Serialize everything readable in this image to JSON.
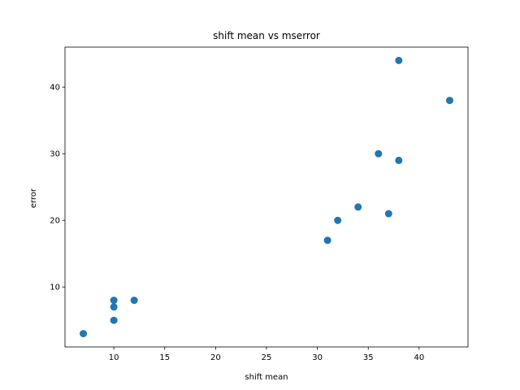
{
  "chart_data": {
    "type": "scatter",
    "title": "shift mean vs mserror",
    "xlabel": "shift mean",
    "ylabel": "error",
    "xlim": [
      5.2,
      44.8
    ],
    "ylim": [
      1.0,
      46.0
    ],
    "xticks": [
      10,
      15,
      20,
      25,
      30,
      35,
      40
    ],
    "yticks": [
      10,
      20,
      30,
      40
    ],
    "grid": false,
    "legend": "none",
    "marker_color": "#1f77b4",
    "points": [
      {
        "x": 7,
        "y": 3
      },
      {
        "x": 10,
        "y": 5
      },
      {
        "x": 10,
        "y": 7
      },
      {
        "x": 10,
        "y": 8
      },
      {
        "x": 12,
        "y": 8
      },
      {
        "x": 31,
        "y": 17
      },
      {
        "x": 32,
        "y": 20
      },
      {
        "x": 34,
        "y": 22
      },
      {
        "x": 36,
        "y": 30
      },
      {
        "x": 37,
        "y": 21
      },
      {
        "x": 38,
        "y": 29
      },
      {
        "x": 38,
        "y": 44
      },
      {
        "x": 43,
        "y": 38
      }
    ]
  }
}
